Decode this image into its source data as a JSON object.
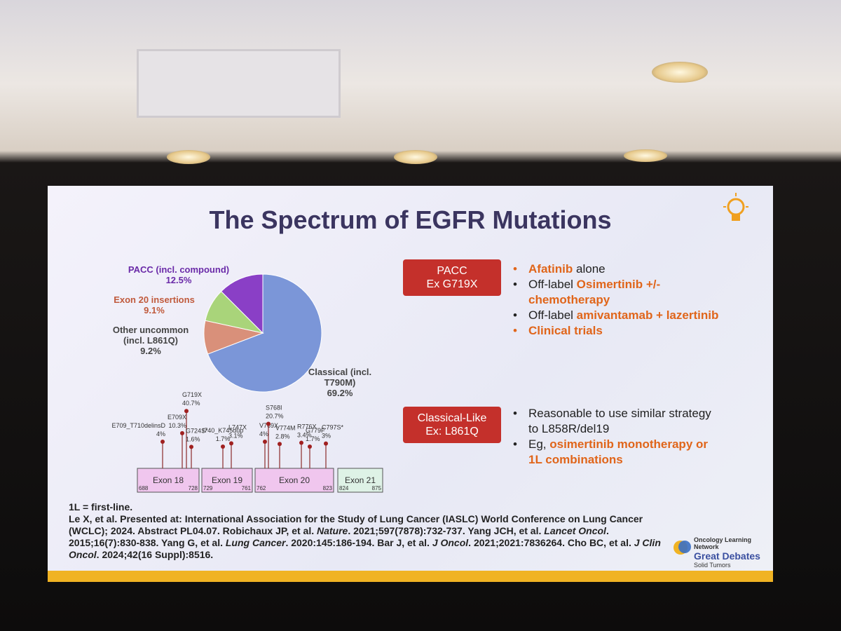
{
  "slide": {
    "title": "The Spectrum of EGFR Mutations",
    "footnote": "1L = first-line.",
    "references": [
      {
        "text": "Le X, et al. Presented at: International Association for the Study of Lung Cancer (IASLC) World Conference on Lung Cancer (WCLC); 2024. Abstract PL04.07. Robichaux JP, et al. "
      },
      {
        "text": "Nature",
        "italic": true
      },
      {
        "text": ". 2021;597(7878):732-737. Yang JCH, et al. "
      },
      {
        "text": "Lancet Oncol",
        "italic": true
      },
      {
        "text": ". 2015;16(7):830-838. Yang G, et al. "
      },
      {
        "text": "Lung Cancer",
        "italic": true
      },
      {
        "text": ". 2020:145:186-194. Bar J, et al. "
      },
      {
        "text": "J Oncol",
        "italic": true
      },
      {
        "text": ". 2021;2021:7836264. Cho BC, et al. "
      },
      {
        "text": "J Clin Oncol",
        "italic": true
      },
      {
        "text": ". 2024;42(16 Suppl):8516."
      }
    ],
    "logo": {
      "network": "Oncology Learning Network",
      "name": "Great Debates",
      "sub": "Solid Tumors"
    }
  },
  "chart_data": {
    "type": "pie",
    "categories": [
      "Classical (incl. T790M)",
      "Other uncommon (incl. L861Q)",
      "Exon 20 insertions",
      "PACC (incl. compound)"
    ],
    "values": [
      69.2,
      9.2,
      9.1,
      12.5
    ],
    "value_labels": [
      "69.2%",
      "9.2%",
      "9.1%",
      "12.5%"
    ],
    "colors": [
      "#7b96d8",
      "#d9907a",
      "#a9d47a",
      "#8a3fc6"
    ],
    "label_colors": [
      "#444444",
      "#444444",
      "#c05a3c",
      "#6a2aa8"
    ]
  },
  "mutation_map": {
    "exons": [
      {
        "label": "Exon 18",
        "start": 688,
        "end": 728
      },
      {
        "label": "Exon 19",
        "start": 729,
        "end": 761
      },
      {
        "label": "Exon 20",
        "start": 762,
        "end": 823
      },
      {
        "label": "Exon 21",
        "start": 824,
        "end": 875
      }
    ],
    "mutations": [
      {
        "name": "E709_T710delinsD",
        "value": 4,
        "value_label": "4%"
      },
      {
        "name": "E709X",
        "value": 10.3,
        "value_label": "10.3%"
      },
      {
        "name": "G719X",
        "value": 40.7,
        "value_label": "40.7%"
      },
      {
        "name": "G724S*",
        "value": 1.6,
        "value_label": "1.6%"
      },
      {
        "name": "I740_K745dup",
        "value": 1.7,
        "value_label": "1.7%"
      },
      {
        "name": "L747X",
        "value": 3.1,
        "value_label": "3.1%"
      },
      {
        "name": "V769X",
        "value": 4,
        "value_label": "4%"
      },
      {
        "name": "S768I",
        "value": 20.7,
        "value_label": "20.7%"
      },
      {
        "name": "V774M",
        "value": 2.8,
        "value_label": "2.8%"
      },
      {
        "name": "R776X",
        "value": 3.4,
        "value_label": "3.4%"
      },
      {
        "name": "G779F",
        "value": 1.7,
        "value_label": "1.7%"
      },
      {
        "name": "C797S*",
        "value": 3,
        "value_label": "3%"
      }
    ]
  },
  "strategies": [
    {
      "label_lines": [
        "PACC",
        "Ex G719X"
      ],
      "bullets": [
        [
          {
            "text": "Afatinib",
            "highlight": true
          },
          {
            "text": " alone"
          }
        ],
        [
          {
            "text": "Off-label "
          },
          {
            "text": "Osimertinib +/- chemotherapy",
            "highlight": true
          }
        ],
        [
          {
            "text": "Off-label "
          },
          {
            "text": "amivantamab + lazertinib",
            "highlight": true
          }
        ],
        [
          {
            "text": "Clinical trials",
            "highlight": true
          }
        ]
      ]
    },
    {
      "label_lines": [
        "Classical-Like",
        "Ex: L861Q"
      ],
      "bullets": [
        [
          {
            "text": "Reasonable to use similar strategy to L858R/del19"
          }
        ],
        [
          {
            "text": "Eg, "
          },
          {
            "text": "osimertinib monotherapy or 1L combinations",
            "highlight": true
          }
        ]
      ]
    }
  ]
}
